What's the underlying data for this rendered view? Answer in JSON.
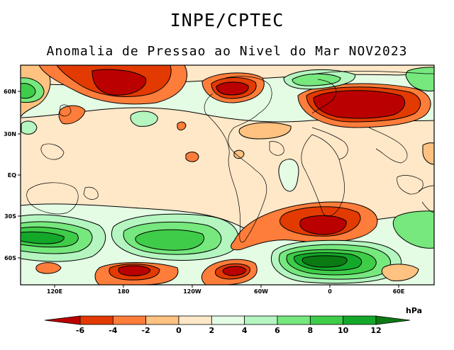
{
  "header": {
    "agency": "INPE/CPTEC"
  },
  "map": {
    "title": "Anomalia de Pressao ao Nivel do Mar NOV2023",
    "lat_labels": [
      "60N",
      "30N",
      "EQ",
      "30S",
      "60S"
    ],
    "lon_labels": [
      "120E",
      "180",
      "120W",
      "60W",
      "0",
      "60E"
    ]
  },
  "colorbar": {
    "unit": "hPa",
    "labels": [
      "-6",
      "-4",
      "-2",
      "0",
      "2",
      "4",
      "6",
      "8",
      "10",
      "12"
    ],
    "colors": [
      "#bb0000",
      "#e23a00",
      "#ff7d3a",
      "#ffc280",
      "#ffe8c8",
      "#e4fbe4",
      "#b4f5c0",
      "#76e87e",
      "#3fcc48",
      "#14a82a",
      "#0b7a12"
    ]
  }
}
